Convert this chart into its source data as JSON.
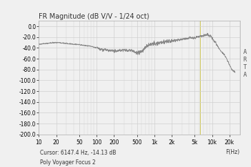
{
  "title": "FR Magnitude (dB V/V - 1/24 oct)",
  "xlabel": "F(Hz)",
  "xlim": [
    10,
    30000
  ],
  "ylim": [
    -200,
    10
  ],
  "yticks": [
    0.0,
    -20.0,
    -40.0,
    -60.0,
    -80.0,
    -100.0,
    -120.0,
    -140.0,
    -160.0,
    -180.0,
    -200.0
  ],
  "xtick_labels": [
    "10",
    "20",
    "50",
    "100",
    "200",
    "500",
    "1k",
    "2k",
    "5k",
    "10k",
    "20k"
  ],
  "xtick_positions": [
    10,
    20,
    50,
    100,
    200,
    500,
    1000,
    2000,
    5000,
    10000,
    20000
  ],
  "cursor_text": "Cursor: 6147.4 Hz, -14.13 dB",
  "model_text": "Poly Voyager Focus 2",
  "arta_text": "A\nR\nT\nA",
  "line_color": "#888888",
  "bg_color": "#f0f0f0",
  "grid_color": "#d0d0d0",
  "highlight_color": "#c8c040",
  "title_fontsize": 7,
  "tick_fontsize": 5.5,
  "annotation_fontsize": 5.5
}
